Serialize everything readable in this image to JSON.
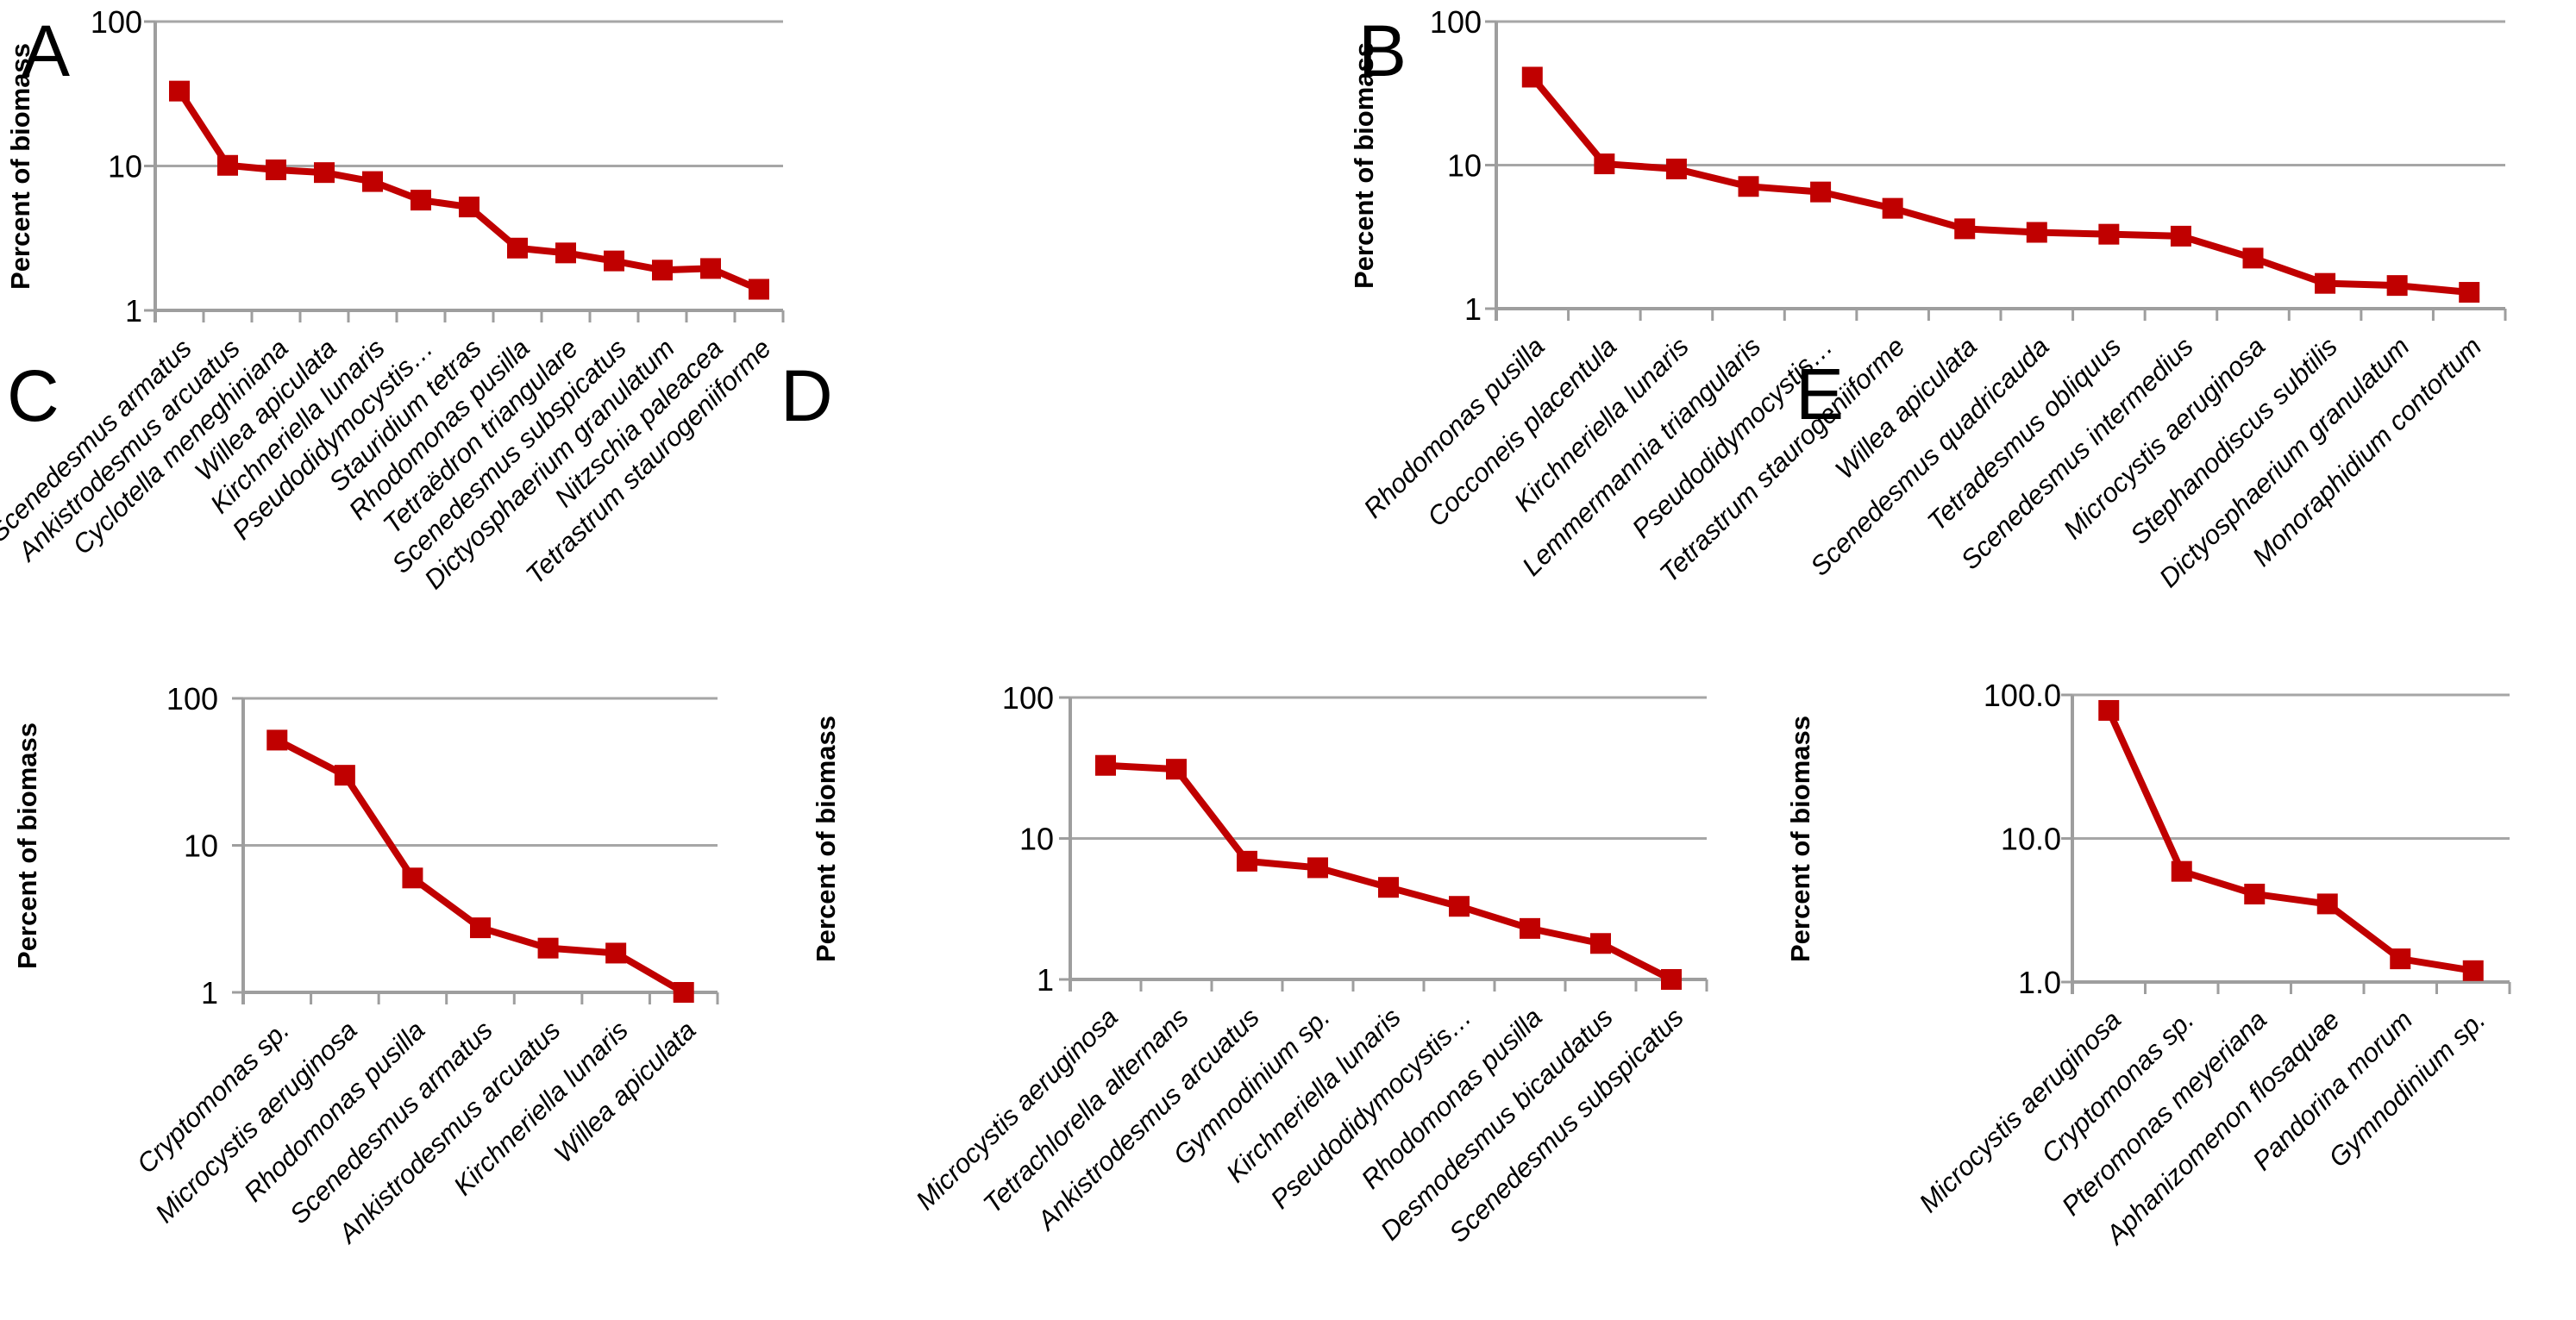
{
  "figure": {
    "background": "#FFFFFF",
    "series_color": "#C00000",
    "grid_color": "#A6A6A6",
    "axis_color": "#9E9E9E",
    "text_color": "#000000",
    "description_visible_text_only": true
  },
  "chart_data": [
    {
      "type": "line",
      "panel_label": "A",
      "title": "",
      "xlabel": "",
      "ylabel": "Percent of biomass",
      "yscale": "log",
      "ylim": [
        1,
        100
      ],
      "ytick_labels": [
        "100",
        "10",
        "1"
      ],
      "grid": "horizontal",
      "legend": "none",
      "marker": "square",
      "categories": [
        "Scenedesmus armatus",
        "Ankistrodesmus arcuatus",
        "Cyclotella meneghiniana",
        "Willea apiculata",
        "Kirchneriella lunaris",
        "Pseudodidymocystis…",
        "Stauridium tetras",
        "Rhodomonas pusilla",
        "Tetraëdron triangulare",
        "Scenedesmus subspicatus",
        "Dictyosphaerium granulatum",
        "Nitzschia paleacea",
        "Tetrastrum staurogeniiforme"
      ],
      "values": [
        33,
        10.1,
        9.4,
        9.0,
        7.8,
        5.8,
        5.2,
        2.7,
        2.5,
        2.2,
        1.9,
        1.95,
        1.4
      ]
    },
    {
      "type": "line",
      "panel_label": "B",
      "title": "",
      "xlabel": "",
      "ylabel": "Percent of biomass",
      "yscale": "log",
      "ylim": [
        1,
        100
      ],
      "ytick_labels": [
        "100",
        "10",
        "1"
      ],
      "grid": "horizontal",
      "legend": "none",
      "marker": "square",
      "categories": [
        "Rhodomonas pusilla",
        "Cocconeis placentula",
        "Kirchneriella lunaris",
        "Lemmermannia triangularis",
        "Pseudodidymocystis…",
        "Tetrastrum staurogeniiforme",
        "Willea apiculata",
        "Scenedesmus quadricauda",
        "Tetradesmus obliquus",
        "Scenedesmus intermedius",
        "Microcystis aeruginosa",
        "Stephanodiscus subtilis",
        "Dictyosphaerium granulatum",
        "Monoraphidium contortum"
      ],
      "values": [
        41,
        10.2,
        9.4,
        7.1,
        6.5,
        5.0,
        3.6,
        3.4,
        3.3,
        3.2,
        2.25,
        1.5,
        1.45,
        1.3
      ]
    },
    {
      "type": "line",
      "panel_label": "C",
      "title": "",
      "xlabel": "",
      "ylabel": "Percent of biomass",
      "yscale": "log",
      "ylim": [
        1,
        100
      ],
      "ytick_labels": [
        "100",
        "10",
        "1"
      ],
      "grid": "horizontal",
      "legend": "none",
      "marker": "square",
      "categories": [
        "Cryptomonas sp.",
        "Microcystis aeruginosa",
        "Rhodomonas pusilla",
        "Scenedesmus armatus",
        "Ankistrodesmus arcuatus",
        "Kirchneriella lunaris",
        "Willea apiculata"
      ],
      "values": [
        52,
        30,
        6.0,
        2.75,
        2.0,
        1.85,
        1.0
      ]
    },
    {
      "type": "line",
      "panel_label": "D",
      "title": "",
      "xlabel": "",
      "ylabel": "Percent of biomass",
      "yscale": "log",
      "ylim": [
        1,
        100
      ],
      "ytick_labels": [
        "100",
        "10",
        "1"
      ],
      "grid": "horizontal",
      "legend": "none",
      "marker": "square",
      "categories": [
        "Microcystis aeruginosa",
        "Tetrachlorella alternans",
        "Ankistrodesmus arcuatus",
        "Gymnodinium sp.",
        "Kirchneriella lunaris",
        "Pseudodidymocystis…",
        "Rhodomonas pusilla",
        "Desmodesmus bicaudatus",
        "Scenedesmus subspicatus"
      ],
      "values": [
        33,
        31,
        6.9,
        6.2,
        4.5,
        3.3,
        2.3,
        1.8,
        1.0
      ]
    },
    {
      "type": "line",
      "panel_label": "E",
      "title": "",
      "xlabel": "",
      "ylabel": "Percent of biomass",
      "yscale": "log",
      "ylim": [
        1,
        100
      ],
      "ytick_labels": [
        "100.0",
        "10.0",
        "1.0"
      ],
      "grid": "horizontal",
      "legend": "none",
      "marker": "square",
      "categories": [
        "Microcystis aeruginosa",
        "Cryptomonas sp.",
        "Pteromonas meyeriana",
        "Aphanizomenon flosaquae",
        "Pandorina morum",
        "Gymnodinium sp."
      ],
      "values": [
        78,
        5.9,
        4.1,
        3.5,
        1.45,
        1.2
      ]
    }
  ]
}
